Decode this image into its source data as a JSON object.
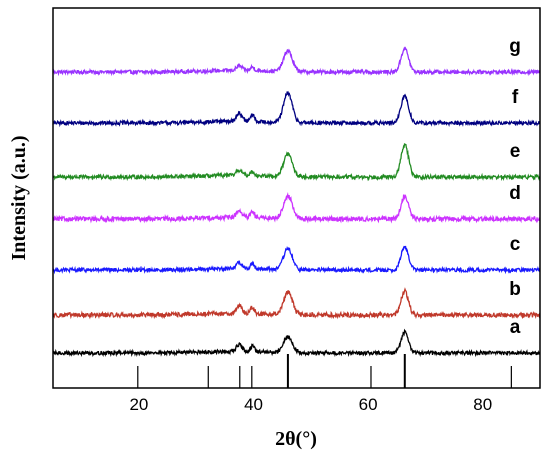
{
  "chart_data": {
    "type": "line",
    "title": "",
    "xlabel": "2θ(°)",
    "ylabel": "Intensity (a.u.)",
    "xlim": [
      5,
      90
    ],
    "x_ticks": [
      20,
      40,
      60,
      80
    ],
    "y_ticks_shown": false,
    "grid": false,
    "legend": "series letters printed at right end of each trace",
    "reference_lines_2theta": [
      19.8,
      32.1,
      37.6,
      39.7,
      46.0,
      60.5,
      66.4,
      85.0
    ],
    "peaks_2theta": [
      37.5,
      39.8,
      46.0,
      66.4
    ],
    "series": [
      {
        "name": "g",
        "color": "#9933ff",
        "peak_46_height": 0.55,
        "peak_66_height": 0.62,
        "small_37_39": 0.12,
        "noise": 0.05
      },
      {
        "name": "f",
        "color": "#000080",
        "peak_46_height": 0.78,
        "peak_66_height": 0.72,
        "small_37_39": 0.22,
        "noise": 0.05
      },
      {
        "name": "e",
        "color": "#228b22",
        "peak_46_height": 0.6,
        "peak_66_height": 0.85,
        "small_37_39": 0.14,
        "noise": 0.05
      },
      {
        "name": "d",
        "color": "#cc33ff",
        "peak_46_height": 0.6,
        "peak_66_height": 0.6,
        "small_37_39": 0.18,
        "noise": 0.06
      },
      {
        "name": "c",
        "color": "#1a1aff",
        "peak_46_height": 0.55,
        "peak_66_height": 0.62,
        "small_37_39": 0.16,
        "noise": 0.05
      },
      {
        "name": "b",
        "color": "#c0392b",
        "peak_46_height": 0.6,
        "peak_66_height": 0.62,
        "small_37_39": 0.2,
        "noise": 0.06
      },
      {
        "name": "a",
        "color": "#000000",
        "peak_46_height": 0.42,
        "peak_66_height": 0.55,
        "small_37_39": 0.18,
        "noise": 0.05
      }
    ]
  }
}
